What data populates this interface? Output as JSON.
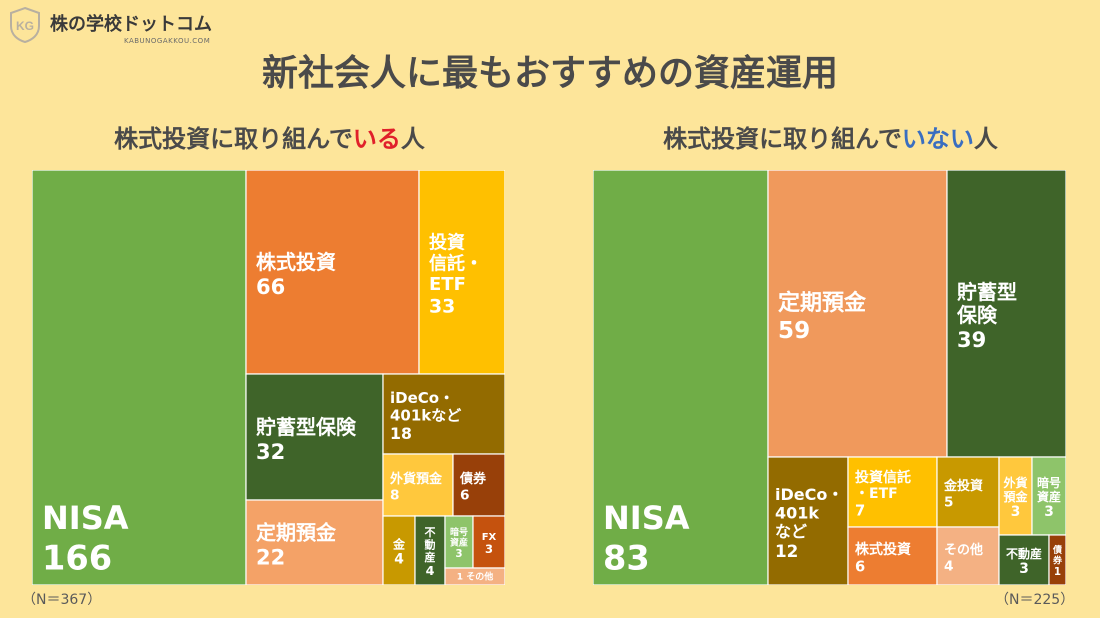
{
  "brand": {
    "name": "株の学校ドットコム",
    "sub": "KABUNOGAKKOU.COM",
    "logo_letters": "KG"
  },
  "title": "新社会人に最もおすすめの資産運用",
  "colors": {
    "background": "#fde59a",
    "green": "#70ad47",
    "orange": "#ed7d31",
    "light_orange": "#f4a267",
    "yellow": "#ffc000",
    "dark_green": "#3f6429",
    "olive": "#936b00",
    "mustard": "#c89900",
    "brown": "#984009",
    "light_green": "#8ec46a"
  },
  "chart_data": [
    {
      "type": "treemap",
      "title_parts": [
        "株式投資に取り組んで",
        "いる",
        "人"
      ],
      "n_label": "（N＝367）",
      "total": 367,
      "items": [
        {
          "label": [
            "NISA"
          ],
          "value": 166,
          "color": "#70ad47"
        },
        {
          "label": [
            "株式投資"
          ],
          "value": 66,
          "color": "#ed7d31"
        },
        {
          "label": [
            "投資",
            "信託・",
            "ETF"
          ],
          "value": 33,
          "color": "#ffc000"
        },
        {
          "label": [
            "貯蓄型保険"
          ],
          "value": 32,
          "color": "#3f6429"
        },
        {
          "label": [
            "iDeCo・",
            "401kなど"
          ],
          "value": 18,
          "color": "#936b00"
        },
        {
          "label": [
            "定期預金"
          ],
          "value": 22,
          "color": "#f4a267"
        },
        {
          "label": [
            "外貨預金"
          ],
          "value": 8,
          "color": "#ffc83d"
        },
        {
          "label": [
            "債券"
          ],
          "value": 6,
          "color": "#984009"
        },
        {
          "label": [
            "金"
          ],
          "value": 4,
          "color": "#c89900"
        },
        {
          "label": [
            "不",
            "動",
            "産"
          ],
          "value": 4,
          "color": "#3f6429"
        },
        {
          "label": [
            "暗号",
            "資産"
          ],
          "value": 3,
          "color": "#8ec46a"
        },
        {
          "label": [
            "FX"
          ],
          "value": 3,
          "color": "#c5520e"
        },
        {
          "label": [
            "その他"
          ],
          "value": 1,
          "color": "#f4b183"
        }
      ]
    },
    {
      "type": "treemap",
      "title_parts": [
        "株式投資に取り組んで",
        "いない",
        "人"
      ],
      "n_label": "（N＝225）",
      "total": 225,
      "items": [
        {
          "label": [
            "NISA"
          ],
          "value": 83,
          "color": "#70ad47"
        },
        {
          "label": [
            "定期預金"
          ],
          "value": 59,
          "color": "#f0995c"
        },
        {
          "label": [
            "貯蓄型",
            "保険"
          ],
          "value": 39,
          "color": "#3f6429"
        },
        {
          "label": [
            "iDeCo・",
            "401k",
            "など"
          ],
          "value": 12,
          "color": "#936b00"
        },
        {
          "label": [
            "投資信託",
            "・ETF"
          ],
          "value": 7,
          "color": "#ffc000"
        },
        {
          "label": [
            "株式投資"
          ],
          "value": 6,
          "color": "#ed7d31"
        },
        {
          "label": [
            "金投資"
          ],
          "value": 5,
          "color": "#c89900"
        },
        {
          "label": [
            "その他"
          ],
          "value": 4,
          "color": "#f4b183"
        },
        {
          "label": [
            "外貨",
            "預金"
          ],
          "value": 3,
          "color": "#ffc83d"
        },
        {
          "label": [
            "暗号",
            "資産"
          ],
          "value": 3,
          "color": "#8ec46a"
        },
        {
          "label": [
            "不動産"
          ],
          "value": 3,
          "color": "#3f6429"
        },
        {
          "label": [
            "債",
            "券"
          ],
          "value": 1,
          "color": "#984009"
        }
      ]
    }
  ]
}
